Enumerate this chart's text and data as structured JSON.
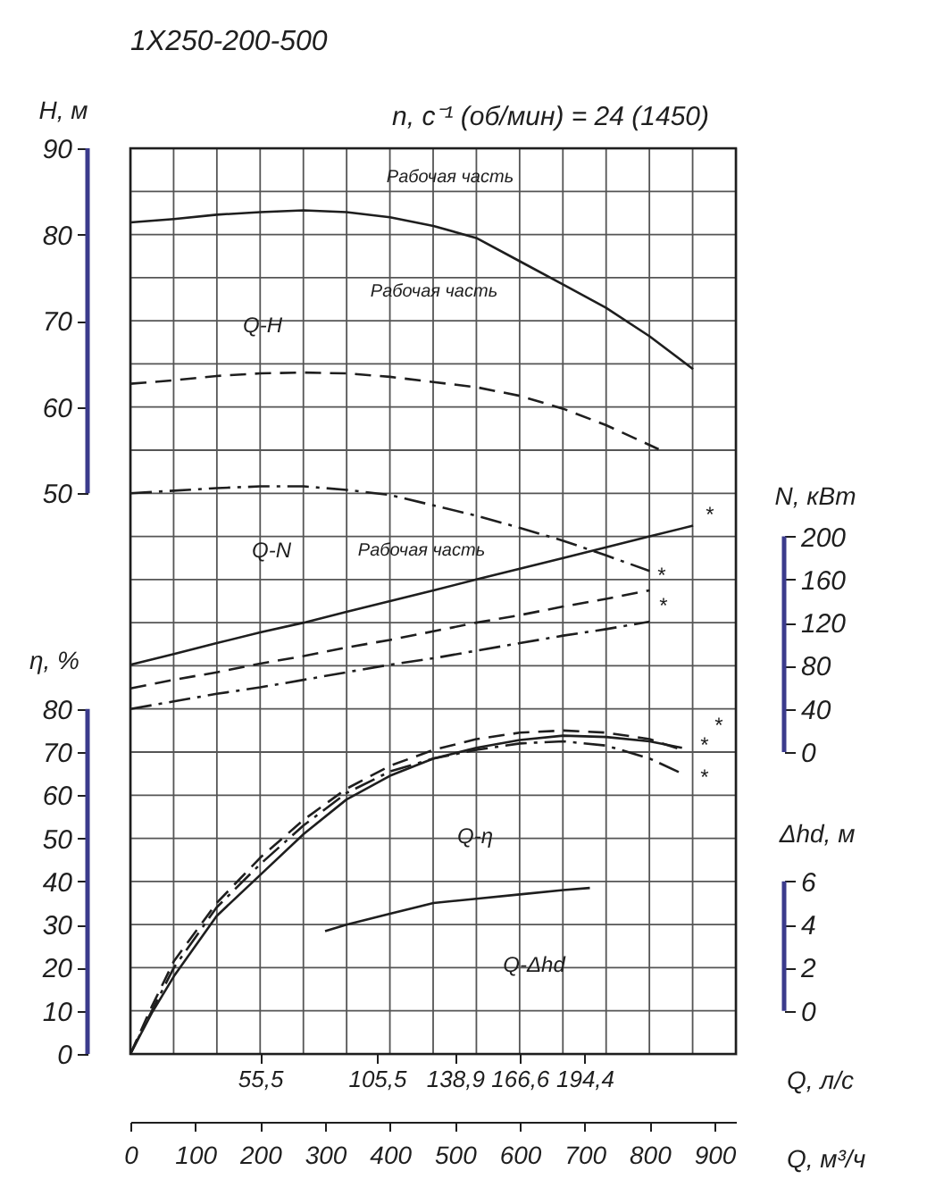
{
  "chart_data": [
    {
      "type": "line",
      "title": "1Х250-200-500",
      "subtitle": "n, с⁻¹ (об/мин) = 24 (1450)",
      "xlabel": "Q, м³/ч",
      "x2label": "Q, л/с",
      "ylabel": "H, м",
      "y2label": "N, кВт",
      "y3label": "η, %",
      "xlim": [
        0,
        933
      ],
      "xticks": [
        0,
        100,
        200,
        300,
        400,
        500,
        600,
        700,
        800,
        900
      ],
      "x2lim": [
        0,
        259.2
      ],
      "x2ticks": [
        {
          "value": 55.5,
          "label": "55,5"
        },
        {
          "value": 105.5,
          "label": "105,5"
        },
        {
          "value": 138.9,
          "label": "138,9"
        },
        {
          "value": 166.6,
          "label": "166,6"
        },
        {
          "value": 194.4,
          "label": "194,4"
        }
      ],
      "ylim": [
        -15,
        90
      ],
      "yticks": [
        50,
        60,
        70,
        80,
        90
      ],
      "y2lim": [
        -280,
        560
      ],
      "y2ticks": [
        0,
        40,
        80,
        120,
        160,
        200
      ],
      "y3lim": [
        0,
        210
      ],
      "y3ticks": [
        0,
        10,
        20,
        30,
        40,
        50,
        60,
        70,
        80
      ],
      "grid": true,
      "series": [
        {
          "color": "#1e1e1e",
          "line_style": "solid",
          "x": [
            0,
            67,
            133,
            200,
            267,
            333,
            400,
            467,
            533,
            600,
            667,
            733,
            800,
            867
          ],
          "values": [
            81.4,
            81.8,
            82.3,
            82.6,
            82.8,
            82.6,
            82,
            81,
            79.6,
            76.9,
            74.2,
            71.5,
            68.2,
            64.4
          ]
        },
        {
          "color": "#1e1e1e",
          "line_style": "dashed",
          "x": [
            0,
            67,
            133,
            200,
            267,
            333,
            400,
            467,
            533,
            600,
            667,
            733,
            800,
            814
          ],
          "values": [
            62.7,
            63.1,
            63.6,
            63.9,
            64,
            63.9,
            63.5,
            62.9,
            62.3,
            61.3,
            59.8,
            57.9,
            55.6,
            55.1
          ]
        },
        {
          "color": "#1e1e1e",
          "line_style": "dashdot",
          "x": [
            0,
            67,
            133,
            200,
            267,
            333,
            400,
            467,
            533,
            600,
            667,
            733,
            800
          ],
          "values": [
            50,
            50.3,
            50.6,
            50.8,
            50.8,
            50.4,
            49.8,
            48.6,
            47.4,
            46,
            44.5,
            42.8,
            41
          ]
        },
        {
          "axis": "y2",
          "color": "#1e1e1e",
          "line_style": "solid",
          "x": [
            0,
            67,
            133,
            200,
            267,
            333,
            400,
            467,
            533,
            600,
            667,
            733,
            800,
            867
          ],
          "values": [
            81,
            91,
            101,
            111,
            120,
            130,
            140,
            150,
            160,
            170,
            180,
            190,
            200,
            210
          ]
        },
        {
          "axis": "y2",
          "color": "#1e1e1e",
          "line_style": "dashed",
          "x": [
            0,
            67,
            133,
            200,
            267,
            333,
            400,
            467,
            533,
            600,
            667,
            733,
            800
          ],
          "values": [
            59,
            67,
            74,
            82,
            89,
            97,
            104,
            112,
            120,
            127,
            135,
            142,
            150
          ]
        },
        {
          "axis": "y2",
          "color": "#1e1e1e",
          "line_style": "dashdot",
          "x": [
            0,
            67,
            133,
            200,
            267,
            333,
            400,
            467,
            533,
            600,
            667,
            733,
            800
          ],
          "values": [
            40,
            47,
            54,
            60,
            67,
            74,
            81,
            87,
            94,
            101,
            108,
            114,
            121
          ]
        },
        {
          "axis": "y3",
          "color": "#1e1e1e",
          "line_style": "solid",
          "x": [
            0,
            33,
            67,
            133,
            200,
            267,
            333,
            400,
            467,
            533,
            600,
            667,
            733,
            800,
            850
          ],
          "values": [
            0,
            9.5,
            18,
            32,
            41.5,
            51,
            59,
            64.5,
            68.5,
            71,
            72.8,
            73.8,
            73.5,
            72.5,
            71
          ]
        },
        {
          "axis": "y3",
          "color": "#1e1e1e",
          "line_style": "dashed",
          "x": [
            0,
            33,
            67,
            133,
            200,
            267,
            333,
            400,
            467,
            533,
            600,
            667,
            733,
            800,
            850
          ],
          "values": [
            0,
            11,
            21.5,
            35,
            45.5,
            54.3,
            61.5,
            66.8,
            70.5,
            73,
            74.5,
            75,
            74.5,
            73,
            70.5
          ]
        },
        {
          "axis": "y3",
          "color": "#1e1e1e",
          "line_style": "dashdot",
          "x": [
            0,
            33,
            67,
            133,
            200,
            267,
            333,
            400,
            467,
            533,
            600,
            667,
            733,
            800,
            850
          ],
          "values": [
            0,
            10,
            20,
            34,
            44,
            53,
            60.5,
            65.5,
            68.5,
            70.5,
            72,
            72.5,
            71.5,
            68.5,
            65
          ]
        }
      ],
      "annotations": [
        "Рабочая часть",
        "Рабочая часть",
        "Рабочая часть",
        "Q-H",
        "Q-N",
        "Q-η",
        "*",
        "*",
        "*",
        "*",
        "*",
        "*"
      ]
    },
    {
      "type": "line",
      "ylabel": "Δhd, м",
      "xlim": [
        0,
        933
      ],
      "ylim": [
        -2,
        40
      ],
      "yticks": [
        0,
        2,
        4,
        6
      ],
      "tick_labels": "y",
      "series": [
        {
          "color": "#1e1e1e",
          "line_style": "solid",
          "x": [
            300,
            333,
            400,
            467,
            533,
            600,
            667,
            708
          ],
          "values": [
            3.7,
            4,
            4.5,
            5,
            5.2,
            5.4,
            5.6,
            5.7
          ]
        }
      ],
      "annotations": [
        "Q-Δhd"
      ]
    }
  ]
}
